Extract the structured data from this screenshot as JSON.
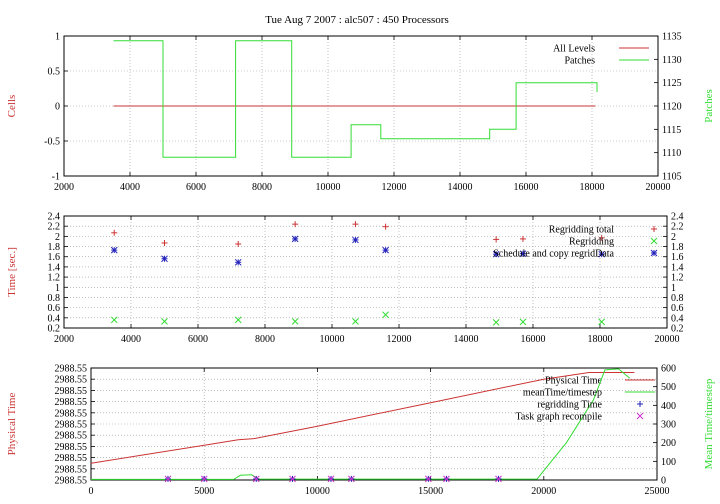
{
  "title": "Tue Aug 7 2007 : alc507 : 450 Processors",
  "colors": {
    "red": "#cc3333",
    "green": "#33dd33",
    "blue": "#2222bb",
    "magenta": "#cc33cc",
    "grid": "#9a9a9a"
  },
  "chart_data": [
    {
      "type": "line",
      "ylabel": "Cells",
      "y2label": "Patches",
      "xlim": [
        2000,
        20000
      ],
      "ylim": [
        -1,
        1
      ],
      "y2lim": [
        1105,
        1135
      ],
      "xticks": [
        2000,
        4000,
        6000,
        8000,
        10000,
        12000,
        14000,
        16000,
        18000,
        20000
      ],
      "yticks": [
        -1,
        -0.5,
        0,
        0.5,
        1
      ],
      "y2ticks": [
        1105,
        1110,
        1115,
        1120,
        1125,
        1130,
        1135
      ],
      "legend_position": "top-right",
      "grid": true,
      "series": [
        {
          "name": "All Levels",
          "axis": "y",
          "color": "red",
          "points": [
            [
              3500,
              0
            ],
            [
              18100,
              0
            ]
          ]
        },
        {
          "name": "Patches",
          "axis": "y2",
          "color": "green",
          "step": true,
          "points": [
            [
              3500,
              1134
            ],
            [
              5000,
              1134
            ],
            [
              5000,
              1109
            ],
            [
              7200,
              1109
            ],
            [
              7200,
              1134
            ],
            [
              8900,
              1134
            ],
            [
              8900,
              1109
            ],
            [
              10700,
              1109
            ],
            [
              10700,
              1116
            ],
            [
              11600,
              1116
            ],
            [
              11600,
              1113
            ],
            [
              14900,
              1113
            ],
            [
              14900,
              1115
            ],
            [
              15700,
              1115
            ],
            [
              15700,
              1125
            ],
            [
              18150,
              1125
            ],
            [
              18150,
              1123
            ]
          ]
        }
      ]
    },
    {
      "type": "scatter",
      "ylabel": "Time [sec.]",
      "xlim": [
        2000,
        20000
      ],
      "ylim": [
        0.2,
        2.4
      ],
      "y2lim": [
        0.2,
        2.4
      ],
      "xticks": [
        2000,
        4000,
        6000,
        8000,
        10000,
        12000,
        14000,
        16000,
        18000,
        20000
      ],
      "yticks": [
        0.2,
        0.4,
        0.6,
        0.8,
        1,
        1.2,
        1.4,
        1.6,
        1.8,
        2,
        2.2,
        2.4
      ],
      "y2ticks": [
        0.2,
        0.4,
        0.6,
        0.8,
        1,
        1.2,
        1.4,
        1.6,
        1.8,
        2,
        2.2,
        2.4
      ],
      "legend_position": "top-right",
      "grid": true,
      "series": [
        {
          "name": "Regridding total",
          "color": "red",
          "marker": "plus",
          "points": [
            [
              3500,
              2.07
            ],
            [
              5000,
              1.87
            ],
            [
              7200,
              1.85
            ],
            [
              8900,
              2.24
            ],
            [
              10700,
              2.24
            ],
            [
              11600,
              2.19
            ],
            [
              14900,
              1.94
            ],
            [
              15700,
              1.95
            ],
            [
              18050,
              1.97
            ]
          ]
        },
        {
          "name": "Regridding",
          "color": "green",
          "marker": "cross",
          "points": [
            [
              3500,
              0.36
            ],
            [
              5000,
              0.33
            ],
            [
              7200,
              0.36
            ],
            [
              8900,
              0.33
            ],
            [
              10700,
              0.33
            ],
            [
              11600,
              0.46
            ],
            [
              14900,
              0.31
            ],
            [
              15700,
              0.32
            ],
            [
              18050,
              0.32
            ]
          ]
        },
        {
          "name": "Schedule and copy regridData",
          "color": "blue",
          "marker": "star",
          "points": [
            [
              3500,
              1.73
            ],
            [
              5000,
              1.56
            ],
            [
              7200,
              1.49
            ],
            [
              8900,
              1.95
            ],
            [
              10700,
              1.93
            ],
            [
              11600,
              1.73
            ],
            [
              14900,
              1.65
            ],
            [
              15700,
              1.66
            ],
            [
              18050,
              1.65
            ]
          ]
        }
      ]
    },
    {
      "type": "line",
      "ylabel": "Physical Time",
      "y2label": "Mean Time/timestep",
      "xlim": [
        0,
        25000
      ],
      "ylim": [
        0,
        10
      ],
      "y2lim": [
        0,
        600
      ],
      "xticks": [
        0,
        5000,
        10000,
        15000,
        20000,
        25000
      ],
      "yticklabels": [
        "2988.55",
        "2988.55",
        "2988.55",
        "2988.55",
        "2988.55",
        "2988.55",
        "2988.55",
        "2988.55",
        "2988.55",
        "2988.55",
        "2988.55"
      ],
      "y2ticks": [
        0,
        100,
        200,
        300,
        400,
        500,
        600
      ],
      "legend_position": "top-right",
      "grid": true,
      "series": [
        {
          "name": "Physical Time",
          "axis": "y",
          "color": "red",
          "points": [
            [
              0,
              1.5
            ],
            [
              5000,
              3.1
            ],
            [
              6500,
              3.6
            ],
            [
              7200,
              3.7
            ],
            [
              10000,
              4.8
            ],
            [
              15000,
              6.9
            ],
            [
              20000,
              9.0
            ],
            [
              22000,
              9.6
            ],
            [
              24000,
              9.6
            ]
          ]
        },
        {
          "name": "meanTime/timestep",
          "axis": "y2",
          "color": "green",
          "points": [
            [
              0,
              3
            ],
            [
              6300,
              3
            ],
            [
              6600,
              25
            ],
            [
              7100,
              28
            ],
            [
              7400,
              5
            ],
            [
              19700,
              5
            ],
            [
              21000,
              200
            ],
            [
              22200,
              430
            ],
            [
              22700,
              590
            ],
            [
              23300,
              595
            ],
            [
              23800,
              545
            ]
          ]
        },
        {
          "name": "regridding Time",
          "axis": "y",
          "color": "blue",
          "marker": "plus",
          "points": [
            [
              3400,
              0.1
            ],
            [
              5000,
              0.1
            ],
            [
              7300,
              0.1
            ],
            [
              8900,
              0.1
            ],
            [
              10600,
              0.1
            ],
            [
              11500,
              0.1
            ],
            [
              14900,
              0.1
            ],
            [
              15700,
              0.1
            ],
            [
              18000,
              0.1
            ]
          ]
        },
        {
          "name": "Task graph recompile",
          "axis": "y",
          "color": "magenta",
          "marker": "cross",
          "points": [
            [
              3400,
              0.1
            ],
            [
              5000,
              0.1
            ],
            [
              7300,
              0.1
            ],
            [
              8900,
              0.1
            ],
            [
              10600,
              0.1
            ],
            [
              11500,
              0.1
            ],
            [
              14900,
              0.1
            ],
            [
              15700,
              0.1
            ],
            [
              18000,
              0.1
            ]
          ]
        }
      ]
    }
  ]
}
